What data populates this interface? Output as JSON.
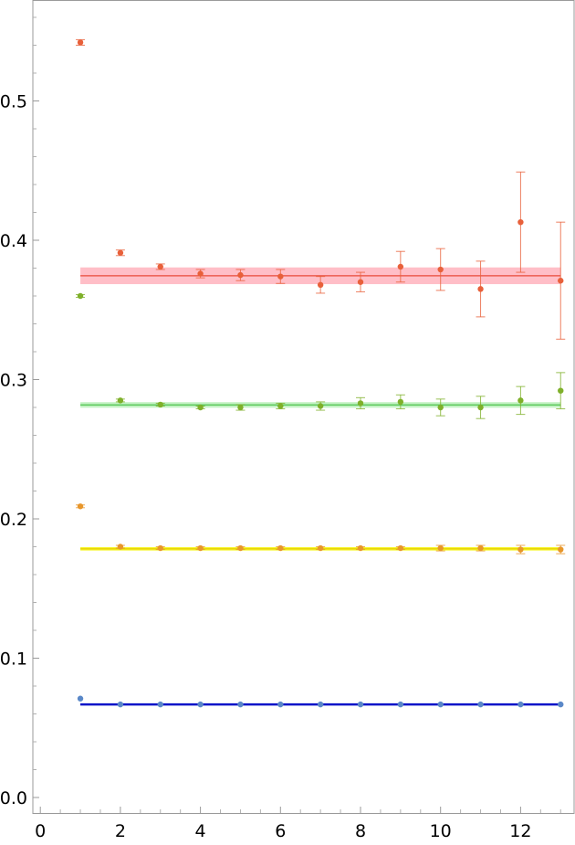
{
  "chart_data": {
    "type": "scatter",
    "title": "",
    "xlabel": "",
    "ylabel": "",
    "xlim": [
      -0.2,
      13.5
    ],
    "ylim": [
      -0.01,
      0.57
    ],
    "x_ticks": [
      0,
      2,
      4,
      6,
      8,
      10,
      12
    ],
    "y_ticks": [
      0.0,
      0.1,
      0.2,
      0.3,
      0.4,
      0.5
    ],
    "x_tick_labels": [
      "0",
      "2",
      "4",
      "6",
      "8",
      "10",
      "12"
    ],
    "y_tick_labels": [
      "0.0",
      "0.1",
      "0.2",
      "0.3",
      "0.4",
      "0.5"
    ],
    "grid": false,
    "series": [
      {
        "color": "#e8603a",
        "x": [
          1,
          2,
          3,
          4,
          5,
          6,
          7,
          8,
          9,
          10,
          11,
          12,
          13
        ],
        "y": [
          0.542,
          0.391,
          0.381,
          0.376,
          0.375,
          0.374,
          0.368,
          0.37,
          0.381,
          0.379,
          0.365,
          0.413,
          0.371
        ],
        "err": [
          0.002,
          0.002,
          0.002,
          0.003,
          0.004,
          0.005,
          0.006,
          0.007,
          0.011,
          0.015,
          0.02,
          0.036,
          0.042
        ],
        "fit": {
          "value": 0.3745,
          "error": 0.006,
          "x_from": 1,
          "x_to": 13,
          "line_color": "#e84a3a",
          "band_color": "#ffb3bd"
        }
      },
      {
        "color": "#7fb02a",
        "x": [
          1,
          2,
          3,
          4,
          5,
          6,
          7,
          8,
          9,
          10,
          11,
          12,
          13
        ],
        "y": [
          0.36,
          0.285,
          0.282,
          0.28,
          0.28,
          0.281,
          0.281,
          0.283,
          0.284,
          0.28,
          0.28,
          0.285,
          0.292
        ],
        "err": [
          0.001,
          0.001,
          0.001,
          0.001,
          0.002,
          0.002,
          0.003,
          0.004,
          0.005,
          0.006,
          0.008,
          0.01,
          0.013
        ],
        "fit": {
          "value": 0.2818,
          "error": 0.002,
          "x_from": 1,
          "x_to": 13,
          "line_color": "#4cc24c",
          "band_color": "#b9f0b9"
        }
      },
      {
        "color": "#e8962a",
        "x": [
          1,
          2,
          3,
          4,
          5,
          6,
          7,
          8,
          9,
          10,
          11,
          12,
          13
        ],
        "y": [
          0.209,
          0.18,
          0.179,
          0.179,
          0.179,
          0.179,
          0.179,
          0.179,
          0.179,
          0.179,
          0.179,
          0.178,
          0.178
        ],
        "err": [
          0.001,
          0.001,
          0.001,
          0.001,
          0.001,
          0.001,
          0.001,
          0.001,
          0.001,
          0.002,
          0.002,
          0.003,
          0.003
        ],
        "fit": {
          "value": 0.1785,
          "error": 0.0012,
          "x_from": 1,
          "x_to": 13,
          "line_color": "#e6c800",
          "band_color": "#f4f400"
        }
      },
      {
        "color": "#5a88c8",
        "x": [
          1,
          2,
          3,
          4,
          5,
          6,
          7,
          8,
          9,
          10,
          11,
          12,
          13
        ],
        "y": [
          0.071,
          0.0668,
          0.0668,
          0.0668,
          0.0668,
          0.0668,
          0.0668,
          0.0668,
          0.0668,
          0.0668,
          0.0668,
          0.0668,
          0.0668
        ],
        "err": [
          0.0005,
          0.0003,
          0.0003,
          0.0003,
          0.0003,
          0.0003,
          0.0003,
          0.0003,
          0.0003,
          0.0003,
          0.0003,
          0.0003,
          0.0003
        ],
        "fit": {
          "value": 0.0668,
          "error": 0.0006,
          "x_from": 1,
          "x_to": 13,
          "line_color": "#0a14c8",
          "band_color": "#3a44e0"
        }
      }
    ]
  }
}
